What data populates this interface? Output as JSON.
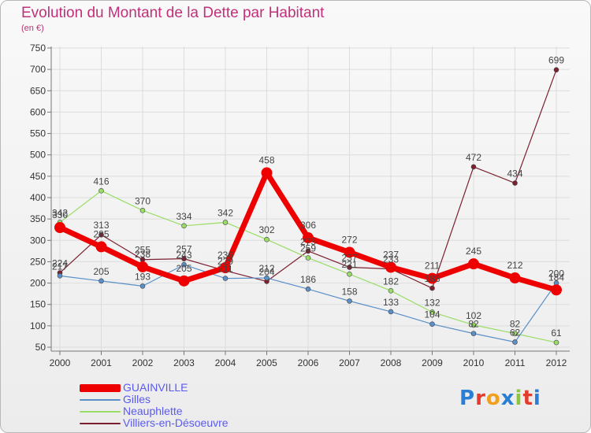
{
  "title": "Evolution du Montant de la Dette par Habitant",
  "subtitle": "(en €)",
  "logo": "Proxiti",
  "colors": {
    "title": "#c0307a",
    "legend_text": "#5a5af0",
    "grid": "#dcdcdc"
  },
  "chart_data": {
    "type": "line",
    "categories": [
      "2000",
      "2001",
      "2002",
      "2003",
      "2004",
      "2005",
      "2006",
      "2007",
      "2008",
      "2009",
      "2010",
      "2011",
      "2012"
    ],
    "ylim": [
      50,
      750
    ],
    "yticks": [
      50,
      100,
      150,
      200,
      250,
      300,
      350,
      400,
      450,
      500,
      550,
      600,
      650,
      700,
      750
    ],
    "grid": true,
    "legend_position": "bottom-left",
    "series": [
      {
        "name": "Villiers-en-Désoeuvre",
        "color": "#7a2030",
        "width": 1.2,
        "marker": 3,
        "values": [
          224,
          313,
          255,
          257,
          229,
          204,
          275,
          237,
          233,
          188,
          472,
          434,
          699
        ]
      },
      {
        "name": "Neauphlette",
        "color": "#99dd66",
        "width": 1.2,
        "marker": 3,
        "values": [
          342,
          416,
          370,
          334,
          342,
          302,
          259,
          221,
          182,
          132,
          102,
          82,
          61
        ]
      },
      {
        "name": "Gilles",
        "color": "#5b8fc7",
        "width": 1.2,
        "marker": 3,
        "values": [
          217,
          205,
          193,
          243,
          211,
          212,
          186,
          158,
          133,
          104,
          82,
          62,
          200
        ]
      },
      {
        "name": "GUAINVILLE",
        "color": "#ee0000",
        "width": 7,
        "marker": 7,
        "values": [
          330,
          285,
          238,
          205,
          236,
          458,
          306,
          272,
          237,
          211,
          245,
          212,
          184
        ]
      }
    ],
    "legend_order": [
      "GUAINVILLE",
      "Gilles",
      "Neauphlette",
      "Villiers-en-Désoeuvre"
    ]
  }
}
